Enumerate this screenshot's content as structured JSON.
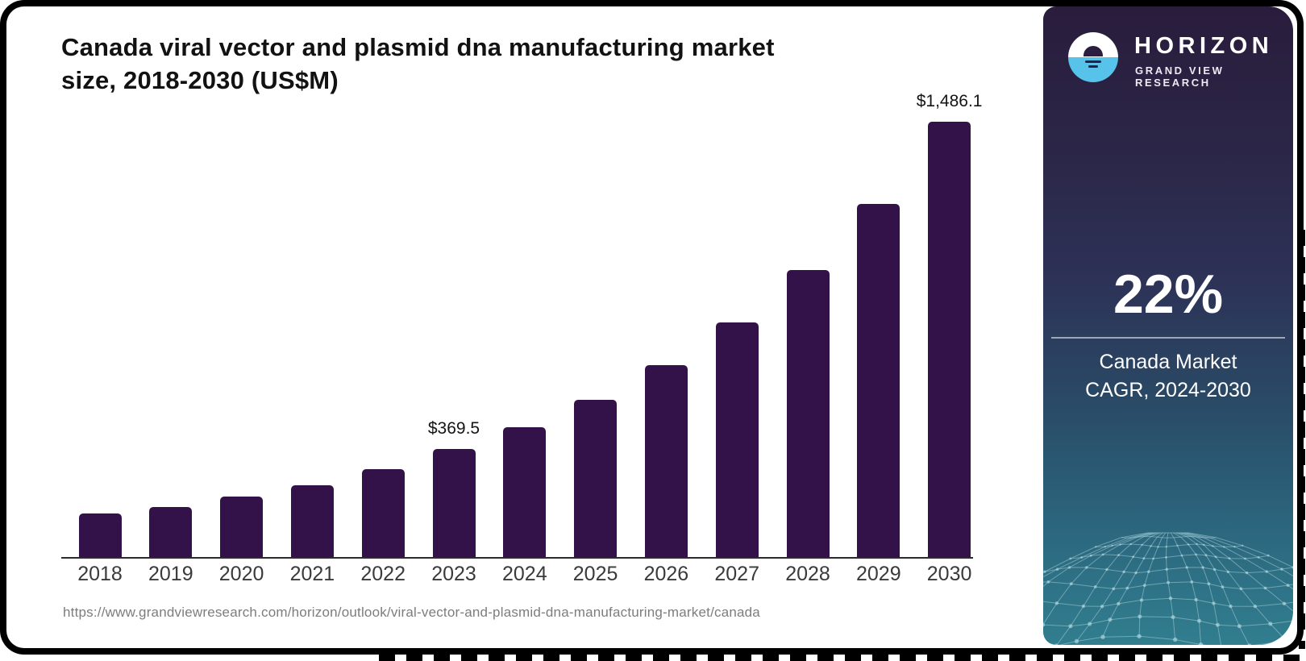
{
  "header": {
    "title_line1": "Canada viral vector and plasmid dna manufacturing market",
    "title_line2": "size, 2018-2030 (US$M)"
  },
  "chart_data": {
    "type": "bar",
    "title": "Canada viral vector and plasmid dna manufacturing market size, 2018-2030 (US$M)",
    "unit": "US$M",
    "categories": [
      "2018",
      "2019",
      "2020",
      "2021",
      "2022",
      "2023",
      "2024",
      "2025",
      "2026",
      "2027",
      "2028",
      "2029",
      "2030"
    ],
    "values": [
      148,
      171,
      206,
      245,
      301,
      369.5,
      443,
      538,
      655,
      801,
      981,
      1205,
      1486.1
    ],
    "data_labels": {
      "2023": "$369.5",
      "2030": "$1,486.1"
    },
    "bar_color": "#331249",
    "xlabel": "",
    "ylabel": "",
    "ylim": [
      0,
      1560
    ],
    "axes_hidden": true,
    "grid": false,
    "legend": "none"
  },
  "source": {
    "url": "https://www.grandviewresearch.com/horizon/outlook/viral-vector-and-plasmid-dna-manufacturing-market/canada"
  },
  "sidebar": {
    "brand": {
      "name": "HORIZON",
      "subtitle": "GRAND VIEW RESEARCH",
      "logo_icon": "horizon-sunset-icon",
      "logo_blue": "#57c2ea",
      "logo_dark": "#2c1e40"
    },
    "stat": {
      "value": "22%",
      "caption_line1": "Canada Market",
      "caption_line2": "CAGR, 2024-2030"
    },
    "colors": {
      "gradient_top": "#2a1c3c",
      "gradient_middle": "#2d3156",
      "gradient_bottom": "#317e8f",
      "mesh_line": "rgba(173,214,221,0.5)"
    }
  }
}
